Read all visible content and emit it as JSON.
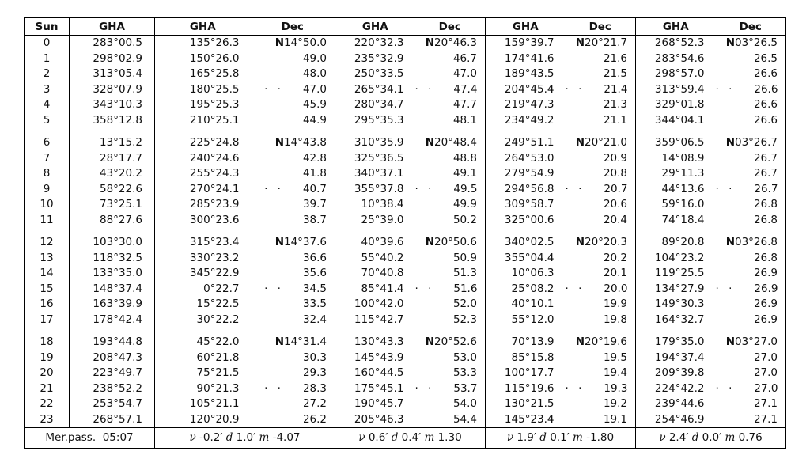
{
  "table": {
    "header": {
      "hour_label": "Sun",
      "sun_gha_label": "GHA",
      "pairs": [
        {
          "gha": "GHA",
          "dec": "Dec"
        },
        {
          "gha": "GHA",
          "dec": "Dec"
        },
        {
          "gha": "GHA",
          "dec": "Dec"
        },
        {
          "gha": "GHA",
          "dec": "Dec"
        }
      ]
    },
    "ditto": "· ·",
    "rows": [
      {
        "h": "0",
        "sun_gha": "283°00.5",
        "bodies": [
          {
            "gha": "135°26.3",
            "dec": "N14°50.0"
          },
          {
            "gha": "220°32.3",
            "dec": "N20°46.3"
          },
          {
            "gha": "159°39.7",
            "dec": "N20°21.7"
          },
          {
            "gha": "268°52.3",
            "dec": "N03°26.5"
          }
        ]
      },
      {
        "h": "1",
        "sun_gha": "298°02.9",
        "bodies": [
          {
            "gha": "150°26.0",
            "dec": "49.0"
          },
          {
            "gha": "235°32.9",
            "dec": "46.7"
          },
          {
            "gha": "174°41.6",
            "dec": "21.6"
          },
          {
            "gha": "283°54.6",
            "dec": "26.5"
          }
        ]
      },
      {
        "h": "2",
        "sun_gha": "313°05.4",
        "bodies": [
          {
            "gha": "165°25.8",
            "dec": "48.0"
          },
          {
            "gha": "250°33.5",
            "dec": "47.0"
          },
          {
            "gha": "189°43.5",
            "dec": "21.5"
          },
          {
            "gha": "298°57.0",
            "dec": "26.6"
          }
        ]
      },
      {
        "h": "3",
        "sun_gha": "328°07.9",
        "bodies": [
          {
            "gha": "180°25.5",
            "dec": "47.0",
            "dots": true
          },
          {
            "gha": "265°34.1",
            "dec": "47.4",
            "dots": true
          },
          {
            "gha": "204°45.4",
            "dec": "21.4",
            "dots": true
          },
          {
            "gha": "313°59.4",
            "dec": "26.6",
            "dots": true
          }
        ]
      },
      {
        "h": "4",
        "sun_gha": "343°10.3",
        "bodies": [
          {
            "gha": "195°25.3",
            "dec": "45.9"
          },
          {
            "gha": "280°34.7",
            "dec": "47.7"
          },
          {
            "gha": "219°47.3",
            "dec": "21.3"
          },
          {
            "gha": "329°01.8",
            "dec": "26.6"
          }
        ]
      },
      {
        "h": "5",
        "sun_gha": "358°12.8",
        "bodies": [
          {
            "gha": "210°25.1",
            "dec": "44.9"
          },
          {
            "gha": "295°35.3",
            "dec": "48.1"
          },
          {
            "gha": "234°49.2",
            "dec": "21.1"
          },
          {
            "gha": "344°04.1",
            "dec": "26.6"
          }
        ]
      },
      {
        "h": "6",
        "sun_gha": "13°15.2",
        "bodies": [
          {
            "gha": "225°24.8",
            "dec": "N14°43.8"
          },
          {
            "gha": "310°35.9",
            "dec": "N20°48.4"
          },
          {
            "gha": "249°51.1",
            "dec": "N20°21.0"
          },
          {
            "gha": "359°06.5",
            "dec": "N03°26.7"
          }
        ]
      },
      {
        "h": "7",
        "sun_gha": "28°17.7",
        "bodies": [
          {
            "gha": "240°24.6",
            "dec": "42.8"
          },
          {
            "gha": "325°36.5",
            "dec": "48.8"
          },
          {
            "gha": "264°53.0",
            "dec": "20.9"
          },
          {
            "gha": "14°08.9",
            "dec": "26.7"
          }
        ]
      },
      {
        "h": "8",
        "sun_gha": "43°20.2",
        "bodies": [
          {
            "gha": "255°24.3",
            "dec": "41.8"
          },
          {
            "gha": "340°37.1",
            "dec": "49.1"
          },
          {
            "gha": "279°54.9",
            "dec": "20.8"
          },
          {
            "gha": "29°11.3",
            "dec": "26.7"
          }
        ]
      },
      {
        "h": "9",
        "sun_gha": "58°22.6",
        "bodies": [
          {
            "gha": "270°24.1",
            "dec": "40.7",
            "dots": true
          },
          {
            "gha": "355°37.8",
            "dec": "49.5",
            "dots": true
          },
          {
            "gha": "294°56.8",
            "dec": "20.7",
            "dots": true
          },
          {
            "gha": "44°13.6",
            "dec": "26.7",
            "dots": true
          }
        ]
      },
      {
        "h": "10",
        "sun_gha": "73°25.1",
        "bodies": [
          {
            "gha": "285°23.9",
            "dec": "39.7"
          },
          {
            "gha": "10°38.4",
            "dec": "49.9"
          },
          {
            "gha": "309°58.7",
            "dec": "20.6"
          },
          {
            "gha": "59°16.0",
            "dec": "26.8"
          }
        ]
      },
      {
        "h": "11",
        "sun_gha": "88°27.6",
        "bodies": [
          {
            "gha": "300°23.6",
            "dec": "38.7"
          },
          {
            "gha": "25°39.0",
            "dec": "50.2"
          },
          {
            "gha": "325°00.6",
            "dec": "20.4"
          },
          {
            "gha": "74°18.4",
            "dec": "26.8"
          }
        ]
      },
      {
        "h": "12",
        "sun_gha": "103°30.0",
        "bodies": [
          {
            "gha": "315°23.4",
            "dec": "N14°37.6"
          },
          {
            "gha": "40°39.6",
            "dec": "N20°50.6"
          },
          {
            "gha": "340°02.5",
            "dec": "N20°20.3"
          },
          {
            "gha": "89°20.8",
            "dec": "N03°26.8"
          }
        ]
      },
      {
        "h": "13",
        "sun_gha": "118°32.5",
        "bodies": [
          {
            "gha": "330°23.2",
            "dec": "36.6"
          },
          {
            "gha": "55°40.2",
            "dec": "50.9"
          },
          {
            "gha": "355°04.4",
            "dec": "20.2"
          },
          {
            "gha": "104°23.2",
            "dec": "26.8"
          }
        ]
      },
      {
        "h": "14",
        "sun_gha": "133°35.0",
        "bodies": [
          {
            "gha": "345°22.9",
            "dec": "35.6"
          },
          {
            "gha": "70°40.8",
            "dec": "51.3"
          },
          {
            "gha": "10°06.3",
            "dec": "20.1"
          },
          {
            "gha": "119°25.5",
            "dec": "26.9"
          }
        ]
      },
      {
        "h": "15",
        "sun_gha": "148°37.4",
        "bodies": [
          {
            "gha": "0°22.7",
            "dec": "34.5",
            "dots": true
          },
          {
            "gha": "85°41.4",
            "dec": "51.6",
            "dots": true
          },
          {
            "gha": "25°08.2",
            "dec": "20.0",
            "dots": true
          },
          {
            "gha": "134°27.9",
            "dec": "26.9",
            "dots": true
          }
        ]
      },
      {
        "h": "16",
        "sun_gha": "163°39.9",
        "bodies": [
          {
            "gha": "15°22.5",
            "dec": "33.5"
          },
          {
            "gha": "100°42.0",
            "dec": "52.0"
          },
          {
            "gha": "40°10.1",
            "dec": "19.9"
          },
          {
            "gha": "149°30.3",
            "dec": "26.9"
          }
        ]
      },
      {
        "h": "17",
        "sun_gha": "178°42.4",
        "bodies": [
          {
            "gha": "30°22.2",
            "dec": "32.4"
          },
          {
            "gha": "115°42.7",
            "dec": "52.3"
          },
          {
            "gha": "55°12.0",
            "dec": "19.8"
          },
          {
            "gha": "164°32.7",
            "dec": "26.9"
          }
        ]
      },
      {
        "h": "18",
        "sun_gha": "193°44.8",
        "bodies": [
          {
            "gha": "45°22.0",
            "dec": "N14°31.4"
          },
          {
            "gha": "130°43.3",
            "dec": "N20°52.6"
          },
          {
            "gha": "70°13.9",
            "dec": "N20°19.6"
          },
          {
            "gha": "179°35.0",
            "dec": "N03°27.0"
          }
        ]
      },
      {
        "h": "19",
        "sun_gha": "208°47.3",
        "bodies": [
          {
            "gha": "60°21.8",
            "dec": "30.3"
          },
          {
            "gha": "145°43.9",
            "dec": "53.0"
          },
          {
            "gha": "85°15.8",
            "dec": "19.5"
          },
          {
            "gha": "194°37.4",
            "dec": "27.0"
          }
        ]
      },
      {
        "h": "20",
        "sun_gha": "223°49.7",
        "bodies": [
          {
            "gha": "75°21.5",
            "dec": "29.3"
          },
          {
            "gha": "160°44.5",
            "dec": "53.3"
          },
          {
            "gha": "100°17.7",
            "dec": "19.4"
          },
          {
            "gha": "209°39.8",
            "dec": "27.0"
          }
        ]
      },
      {
        "h": "21",
        "sun_gha": "238°52.2",
        "bodies": [
          {
            "gha": "90°21.3",
            "dec": "28.3",
            "dots": true
          },
          {
            "gha": "175°45.1",
            "dec": "53.7",
            "dots": true
          },
          {
            "gha": "115°19.6",
            "dec": "19.3",
            "dots": true
          },
          {
            "gha": "224°42.2",
            "dec": "27.0",
            "dots": true
          }
        ]
      },
      {
        "h": "22",
        "sun_gha": "253°54.7",
        "bodies": [
          {
            "gha": "105°21.1",
            "dec": "27.2"
          },
          {
            "gha": "190°45.7",
            "dec": "54.0"
          },
          {
            "gha": "130°21.5",
            "dec": "19.2"
          },
          {
            "gha": "239°44.6",
            "dec": "27.1"
          }
        ]
      },
      {
        "h": "23",
        "sun_gha": "268°57.1",
        "bodies": [
          {
            "gha": "120°20.9",
            "dec": "26.2"
          },
          {
            "gha": "205°46.3",
            "dec": "54.4"
          },
          {
            "gha": "145°23.4",
            "dec": "19.1"
          },
          {
            "gha": "254°46.9",
            "dec": "27.1"
          }
        ]
      }
    ],
    "footer": {
      "merpass": "Mer.pass.  05:07",
      "vdm": [
        "ν -0.2′ d 1.0′ m -4.07",
        "ν 0.6′ d 0.4′ m 1.30",
        "ν 1.9′ d 0.1′ m -1.80",
        "ν 2.4′ d 0.0′ m 0.76"
      ]
    }
  }
}
